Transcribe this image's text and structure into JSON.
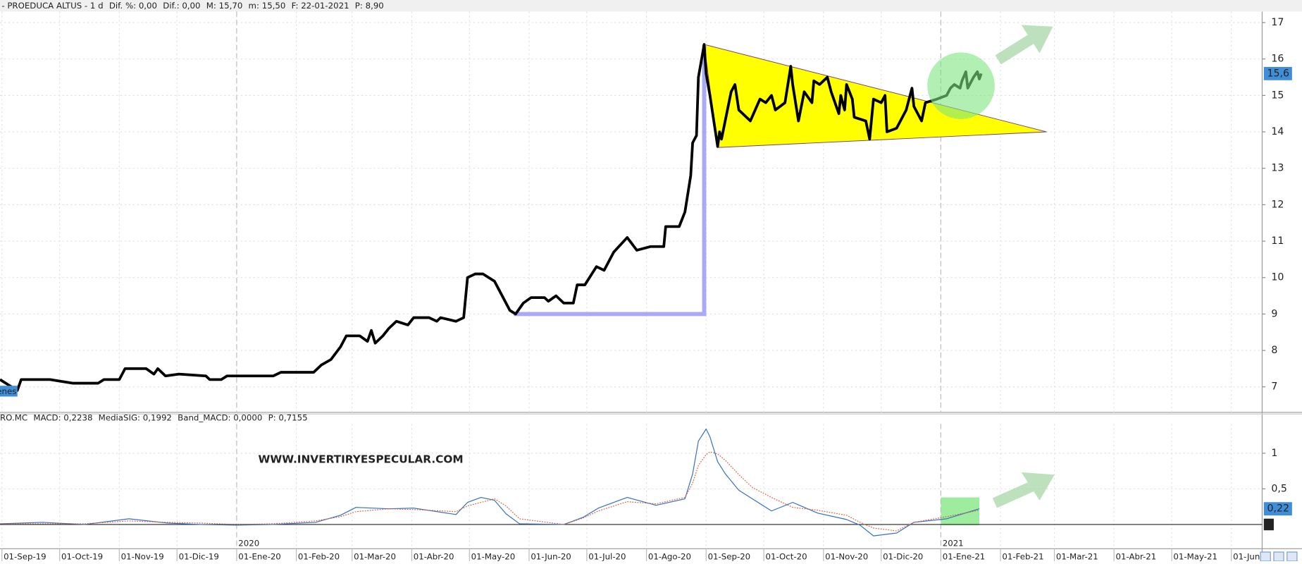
{
  "chart_data": [
    {
      "type": "line",
      "header": [
        {
          "text": "- PROEDUCA ALTUS -  1 d",
          "color": "#222222"
        },
        {
          "text": "Dif. %: 0,00",
          "color": "#222222"
        },
        {
          "text": "Dif.: 0,00",
          "color": "#222222"
        },
        {
          "text": "M: 15,70",
          "color": "#222222"
        },
        {
          "text": "m: 15,50",
          "color": "#222222"
        },
        {
          "text": "F: 22-01-2021",
          "color": "#222222"
        },
        {
          "text": "P: 8,90",
          "color": "#e02020"
        }
      ],
      "xlim": [
        "2019-08-31",
        "2021-06-17"
      ],
      "ylim": [
        6.3,
        17.3
      ],
      "yticks": [
        7,
        8,
        9,
        10,
        11,
        12,
        13,
        14,
        15,
        16,
        17
      ],
      "grid": true,
      "color": "#000000",
      "x": [
        "2019-08-31",
        "2019-09-09",
        "2019-09-11",
        "2019-09-26",
        "2019-10-08",
        "2019-10-21",
        "2019-10-24",
        "2019-11-01",
        "2019-11-04",
        "2019-11-15",
        "2019-11-19",
        "2019-11-21",
        "2019-11-25",
        "2019-12-02",
        "2019-12-16",
        "2019-12-18",
        "2019-12-24",
        "2019-12-27",
        "2020-01-20",
        "2020-01-24",
        "2020-02-10",
        "2020-02-14",
        "2020-02-19",
        "2020-02-24",
        "2020-02-27",
        "2020-03-05",
        "2020-03-09",
        "2020-03-11",
        "2020-03-13",
        "2020-03-17",
        "2020-03-20",
        "2020-03-24",
        "2020-03-30",
        "2020-04-02",
        "2020-04-10",
        "2020-04-14",
        "2020-04-16",
        "2020-04-24",
        "2020-04-28",
        "2020-04-30",
        "2020-05-04",
        "2020-05-08",
        "2020-05-14",
        "2020-05-18",
        "2020-05-22",
        "2020-05-25",
        "2020-05-29",
        "2020-06-02",
        "2020-06-09",
        "2020-06-11",
        "2020-06-15",
        "2020-06-19",
        "2020-06-24",
        "2020-06-26",
        "2020-06-30",
        "2020-07-06",
        "2020-07-10",
        "2020-07-15",
        "2020-07-22",
        "2020-07-27",
        "2020-08-03",
        "2020-08-10",
        "2020-08-11",
        "2020-08-18",
        "2020-08-21",
        "2020-08-24",
        "2020-08-25",
        "2020-08-27",
        "2020-08-28",
        "2020-08-31",
        "2020-09-01",
        "2020-09-03",
        "2020-09-07",
        "2020-09-08",
        "2020-09-09",
        "2020-09-14",
        "2020-09-16",
        "2020-09-18",
        "2020-09-24",
        "2020-09-29",
        "2020-10-02",
        "2020-10-05",
        "2020-10-07",
        "2020-10-12",
        "2020-10-15",
        "2020-10-16",
        "2020-10-19",
        "2020-10-22",
        "2020-10-26",
        "2020-10-27",
        "2020-10-30",
        "2020-11-03",
        "2020-11-05",
        "2020-11-09",
        "2020-11-10",
        "2020-11-12",
        "2020-11-13",
        "2020-11-16",
        "2020-11-17",
        "2020-11-23",
        "2020-11-25",
        "2020-11-27",
        "2020-12-01",
        "2020-12-03",
        "2020-12-04",
        "2020-12-09",
        "2020-12-14",
        "2020-12-17",
        "2020-12-18",
        "2020-12-22",
        "2020-12-24",
        "2020-12-30",
        "2021-01-04",
        "2021-01-06",
        "2021-01-08",
        "2021-01-11",
        "2021-01-12",
        "2021-01-14",
        "2021-01-15",
        "2021-01-18",
        "2021-01-20",
        "2021-01-21",
        "2021-01-22"
      ],
      "values": [
        7.2,
        6.9,
        7.2,
        7.2,
        7.1,
        7.1,
        7.2,
        7.2,
        7.5,
        7.5,
        7.35,
        7.5,
        7.3,
        7.35,
        7.3,
        7.2,
        7.2,
        7.3,
        7.3,
        7.4,
        7.4,
        7.6,
        7.75,
        8.1,
        8.4,
        8.4,
        8.25,
        8.55,
        8.2,
        8.4,
        8.6,
        8.8,
        8.7,
        8.9,
        8.9,
        8.8,
        8.9,
        8.8,
        8.9,
        10.0,
        10.1,
        10.1,
        9.9,
        9.5,
        9.1,
        9.0,
        9.3,
        9.45,
        9.45,
        9.35,
        9.5,
        9.3,
        9.3,
        9.8,
        9.8,
        10.3,
        10.2,
        10.7,
        11.1,
        10.75,
        10.85,
        10.85,
        11.4,
        11.4,
        11.8,
        12.8,
        13.7,
        13.9,
        15.5,
        16.4,
        15.6,
        15.0,
        13.6,
        14.0,
        13.8,
        15.1,
        15.3,
        14.6,
        14.3,
        14.9,
        14.8,
        15.0,
        14.6,
        14.8,
        15.8,
        15.3,
        14.3,
        15.1,
        14.8,
        15.4,
        15.3,
        15.5,
        15.1,
        14.5,
        15.0,
        14.6,
        15.3,
        14.9,
        14.4,
        14.3,
        13.8,
        14.9,
        14.8,
        15.0,
        14.0,
        14.1,
        14.6,
        15.2,
        14.7,
        14.3,
        14.8,
        14.9,
        15.0,
        15.2,
        15.3,
        15.2,
        15.4,
        15.65,
        15.2,
        15.5,
        15.65,
        15.45,
        15.6
      ],
      "last_value": {
        "value": 15.6,
        "label": "15,6",
        "color": "#3f8fd8"
      },
      "corner_label": "enes",
      "shapes": [
        {
          "type": "polygon",
          "color": "#ffff00",
          "x": [
            "2020-08-31",
            "2021-02-25",
            "2020-09-07"
          ],
          "y": [
            16.4,
            14.0,
            13.57
          ]
        },
        {
          "type": "polyline",
          "color": "#a9a9f5",
          "x": [
            "2020-05-24",
            "2020-08-31",
            "2020-08-31"
          ],
          "y": [
            9.0,
            9.0,
            16.4
          ]
        },
        {
          "type": "ellipse",
          "color": "#7ee57e",
          "x": [
            "2020-12-25",
            "2021-01-29"
          ],
          "y": [
            14.35,
            16.18
          ]
        }
      ]
    },
    {
      "type": "line",
      "header": [
        {
          "text": "RO.MC",
          "color": "#3f7fd0"
        },
        {
          "text": "MACD: 0,2238",
          "color": "#222222"
        },
        {
          "text": "MediaSIG: 0,1992",
          "color": "#3f7fd0"
        },
        {
          "text": "Band_MACD: 0,0000",
          "color": "#222222"
        },
        {
          "text": "P: 0,7155",
          "color": "#e02020"
        }
      ],
      "xlim": [
        "2019-08-31",
        "2021-06-17"
      ],
      "ylim": [
        -0.34,
        1.41
      ],
      "yticks": [
        {
          "value": 0.5,
          "label": "0,5"
        },
        1
      ],
      "grid": true,
      "xticks": [
        {
          "value": "2019-09-01",
          "label": "01-Sep-19"
        },
        {
          "value": "2019-10-01",
          "label": "01-Oct-19"
        },
        {
          "value": "2019-11-01",
          "label": "01-Nov-19"
        },
        {
          "value": "2019-12-01",
          "label": "01-Dic-19"
        },
        {
          "value": "2020-01-01",
          "label": "01-Ene-20"
        },
        {
          "value": "2020-02-01",
          "label": "01-Feb-20"
        },
        {
          "value": "2020-03-01",
          "label": "01-Mar-20"
        },
        {
          "value": "2020-04-01",
          "label": "01-Abr-20"
        },
        {
          "value": "2020-05-01",
          "label": "01-May-20"
        },
        {
          "value": "2020-06-01",
          "label": "01-Jun-20"
        },
        {
          "value": "2020-07-01",
          "label": "01-Jul-20"
        },
        {
          "value": "2020-08-01",
          "label": "01-Ago-20"
        },
        {
          "value": "2020-09-01",
          "label": "01-Sep-20"
        },
        {
          "value": "2020-10-01",
          "label": "01-Oct-20"
        },
        {
          "value": "2020-11-01",
          "label": "01-Nov-20"
        },
        {
          "value": "2020-12-01",
          "label": "01-Dic-20"
        },
        {
          "value": "2021-01-01",
          "label": "01-Ene-21"
        },
        {
          "value": "2021-02-01",
          "label": "01-Feb-21"
        },
        {
          "value": "2021-03-01",
          "label": "01-Mar-21"
        },
        {
          "value": "2021-04-01",
          "label": "01-Abr-21"
        },
        {
          "value": "2021-05-01",
          "label": "01-May-21"
        },
        {
          "value": "2021-06-01",
          "label": "01-Jun"
        }
      ],
      "year_ticks": [
        {
          "value": "2020-01-01",
          "label": "2020"
        },
        {
          "value": "2021-01-01",
          "label": "2021"
        }
      ],
      "x": [
        "2019-08-31",
        "2019-09-22",
        "2019-10-14",
        "2019-11-06",
        "2019-11-26",
        "2019-12-13",
        "2020-01-01",
        "2020-01-20",
        "2020-02-11",
        "2020-02-24",
        "2020-03-03",
        "2020-03-20",
        "2020-04-02",
        "2020-04-24",
        "2020-04-30",
        "2020-05-07",
        "2020-05-14",
        "2020-05-20",
        "2020-05-27",
        "2020-06-19",
        "2020-06-29",
        "2020-07-07",
        "2020-07-22",
        "2020-08-06",
        "2020-08-21",
        "2020-08-25",
        "2020-08-28",
        "2020-09-01",
        "2020-09-03",
        "2020-09-07",
        "2020-09-11",
        "2020-09-18",
        "2020-09-25",
        "2020-10-05",
        "2020-10-16",
        "2020-10-29",
        "2020-11-13",
        "2020-11-20",
        "2020-11-27",
        "2020-12-09",
        "2020-12-18",
        "2021-01-04",
        "2021-01-21"
      ],
      "series": [
        {
          "color": "#2f6fc4",
          "dashed": false,
          "values": [
            0.01,
            0.03,
            0.0,
            0.08,
            0.02,
            0.0,
            -0.01,
            0.0,
            0.03,
            0.13,
            0.24,
            0.22,
            0.23,
            0.14,
            0.31,
            0.38,
            0.34,
            0.15,
            0.01,
            0.0,
            0.1,
            0.23,
            0.38,
            0.27,
            0.36,
            0.71,
            1.17,
            1.34,
            1.23,
            0.88,
            0.71,
            0.48,
            0.36,
            0.19,
            0.31,
            0.16,
            0.07,
            -0.01,
            -0.16,
            -0.12,
            0.03,
            0.08,
            0.22
          ]
        },
        {
          "color": "#e05a3a",
          "dashed": true,
          "values": [
            0.01,
            0.01,
            0.01,
            0.05,
            0.03,
            0.02,
            0.0,
            0.01,
            0.05,
            0.11,
            0.18,
            0.22,
            0.21,
            0.18,
            0.26,
            0.31,
            0.36,
            0.26,
            0.08,
            0.0,
            0.09,
            0.19,
            0.32,
            0.29,
            0.38,
            0.58,
            0.83,
            0.98,
            1.02,
            0.99,
            0.9,
            0.7,
            0.52,
            0.38,
            0.24,
            0.2,
            0.13,
            0.03,
            -0.05,
            -0.09,
            0.03,
            0.11,
            0.2
          ]
        }
      ],
      "baseline": {
        "value": 0,
        "label": "0"
      },
      "last_value": {
        "value": 0.22,
        "label": "0,22",
        "color": "#3f8fd8"
      },
      "annotation": "WWW.INVERTIRYESPECULAR.COM",
      "shapes": [
        {
          "type": "rect",
          "color": "#7ee57e",
          "x": [
            "2021-01-01",
            "2021-01-21"
          ],
          "y": [
            -0.01,
            0.38
          ]
        }
      ]
    }
  ]
}
